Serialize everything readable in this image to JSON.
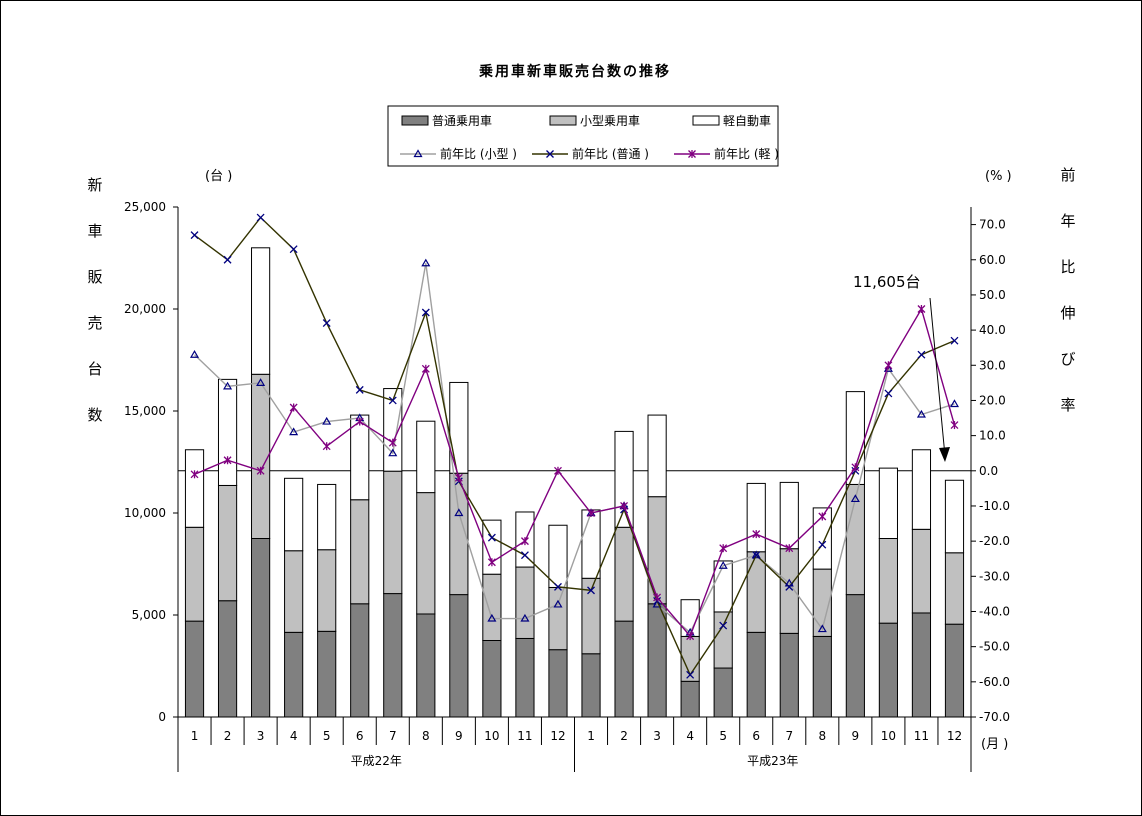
{
  "chart_data": {
    "type": "bar",
    "title": "乗用車新車販売台数の推移",
    "left_unit": "(台 )",
    "right_unit": "(% )",
    "x_unit": "(月 )",
    "ylabel_left": "新車販売台数",
    "ylabel_right": "前年比伸び率",
    "categories": [
      "1",
      "2",
      "3",
      "4",
      "5",
      "6",
      "7",
      "8",
      "9",
      "10",
      "11",
      "12",
      "1",
      "2",
      "3",
      "4",
      "5",
      "6",
      "7",
      "8",
      "9",
      "10",
      "11",
      "12"
    ],
    "groups": [
      {
        "label": "平成22年",
        "start": 0,
        "end": 11
      },
      {
        "label": "平成23年",
        "start": 12,
        "end": 23
      }
    ],
    "y_left_range": [
      0,
      25000
    ],
    "y_left_ticks": [
      "0",
      "5,000",
      "10,000",
      "15,000",
      "20,000",
      "25,000"
    ],
    "y_right_range": [
      -70,
      75
    ],
    "y_right_ticks": [
      "-70.0",
      "-60.0",
      "-50.0",
      "-40.0",
      "-30.0",
      "-20.0",
      "-10.0",
      "0.0",
      "10.0",
      "20.0",
      "30.0",
      "40.0",
      "50.0",
      "60.0",
      "70.0"
    ],
    "annotation": "11,605台",
    "bar_series": [
      {
        "name": "普通乗用車",
        "color": "#808080",
        "values": [
          4700,
          5700,
          8750,
          4150,
          4200,
          5550,
          6050,
          5050,
          6000,
          3750,
          3850,
          3300,
          3100,
          4700,
          5550,
          1750,
          2400,
          4150,
          4100,
          3950,
          6000,
          4600,
          5100,
          4550
        ]
      },
      {
        "name": "小型乗用車",
        "color": "#c0c0c0",
        "values": [
          4600,
          5650,
          8050,
          4000,
          4000,
          5100,
          6000,
          5950,
          5950,
          3250,
          3500,
          3050,
          3700,
          4600,
          5250,
          2200,
          2750,
          3950,
          4150,
          3300,
          5400,
          4150,
          4100,
          3500
        ]
      },
      {
        "name": "軽自動車",
        "color": "#ffffff",
        "values": [
          3800,
          5200,
          6200,
          3550,
          3200,
          4150,
          4050,
          3500,
          4450,
          2650,
          2700,
          3050,
          3350,
          4700,
          4000,
          1800,
          2500,
          3350,
          3250,
          3000,
          4550,
          3450,
          3900,
          3555
        ]
      }
    ],
    "line_series": [
      {
        "name": "前年比 (小型 )",
        "color": "#a0a0a0",
        "marker": "triangle",
        "values": [
          33,
          24,
          25,
          11,
          14,
          15,
          5,
          59,
          -12,
          -42,
          -42,
          -38,
          -12,
          -10,
          -38,
          -46,
          -27,
          -24,
          -32,
          -45,
          -8,
          29,
          16,
          19
        ]
      },
      {
        "name": "前年比 (普通 )",
        "color": "#333300",
        "marker": "x",
        "values": [
          67,
          60,
          72,
          63,
          42,
          23,
          20,
          45,
          -3,
          -19,
          -24,
          -33,
          -34,
          -11,
          -37,
          -58,
          -44,
          -24,
          -33,
          -21,
          0,
          22,
          33,
          37
        ]
      },
      {
        "name": "前年比 (軽 )",
        "color": "#800080",
        "marker": "star",
        "values": [
          -1,
          3,
          0,
          18,
          7,
          14,
          8,
          29,
          -2,
          -26,
          -20,
          0,
          -12,
          -10,
          -36,
          -47,
          -22,
          -18,
          -22,
          -13,
          1,
          30,
          46,
          13
        ]
      }
    ]
  }
}
